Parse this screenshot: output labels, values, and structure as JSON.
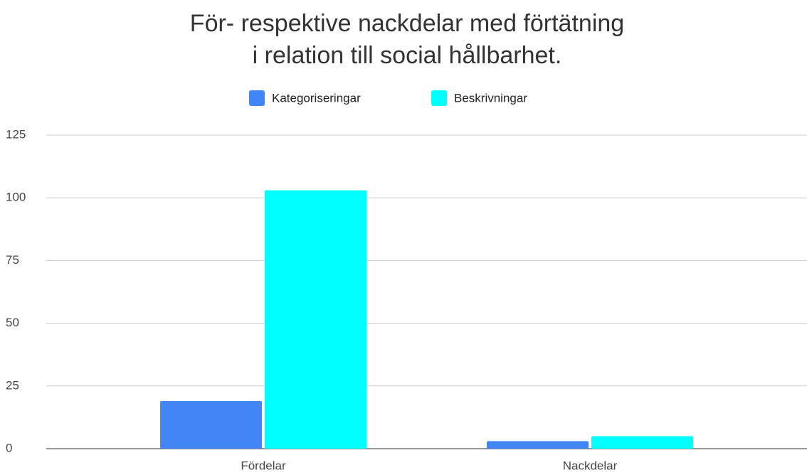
{
  "chart_data": {
    "type": "bar",
    "title": [
      "För- respektive nackdelar med förtätning",
      "i relation till social hållbarhet."
    ],
    "categories": [
      "Fördelar",
      "Nackdelar"
    ],
    "series": [
      {
        "name": "Kategoriseringar",
        "color": "#4285f4",
        "values": [
          19,
          3
        ]
      },
      {
        "name": "Beskrivningar",
        "color": "#00ffff",
        "values": [
          103,
          5
        ]
      }
    ],
    "ylim": [
      0,
      125
    ],
    "yticks": [
      0,
      25,
      50,
      75,
      100,
      125
    ],
    "grid": true,
    "legend": "top"
  }
}
